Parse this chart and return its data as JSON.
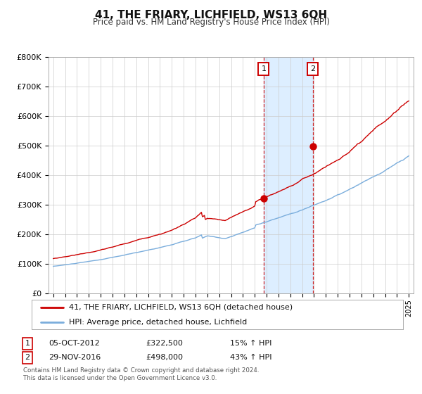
{
  "title": "41, THE FRIARY, LICHFIELD, WS13 6QH",
  "subtitle": "Price paid vs. HM Land Registry's House Price Index (HPI)",
  "red_label": "41, THE FRIARY, LICHFIELD, WS13 6QH (detached house)",
  "blue_label": "HPI: Average price, detached house, Lichfield",
  "sale1_date": "05-OCT-2012",
  "sale1_price": "£322,500",
  "sale1_hpi": "15% ↑ HPI",
  "sale1_year": 2012.75,
  "sale2_date": "29-NOV-2016",
  "sale2_price": "£498,000",
  "sale2_hpi": "43% ↑ HPI",
  "sale2_year": 2016.9,
  "sale1_val": 322500,
  "sale2_val": 498000,
  "footnote1": "Contains HM Land Registry data © Crown copyright and database right 2024.",
  "footnote2": "This data is licensed under the Open Government Licence v3.0.",
  "ylim": [
    0,
    800000
  ],
  "yticks": [
    0,
    100000,
    200000,
    300000,
    400000,
    500000,
    600000,
    700000,
    800000
  ],
  "ytick_labels": [
    "£0",
    "£100K",
    "£200K",
    "£300K",
    "£400K",
    "£500K",
    "£600K",
    "£700K",
    "£800K"
  ],
  "xlim_start": 1994.6,
  "xlim_end": 2025.4,
  "red_color": "#cc0000",
  "blue_color": "#7aaddc",
  "shade_color": "#ddeeff",
  "grid_color": "#cccccc",
  "bg_color": "#ffffff"
}
